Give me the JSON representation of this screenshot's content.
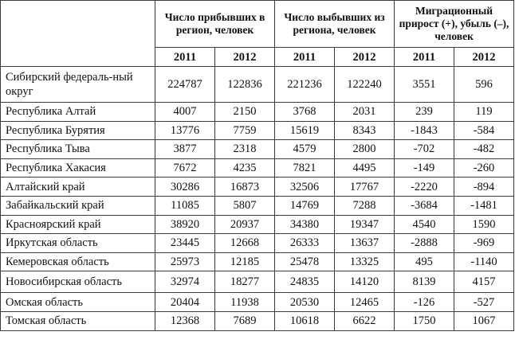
{
  "headers": {
    "arrived": "Число прибывших в регион, человек",
    "departed": "Число выбывших из региона, человек",
    "migration": "Миграционный прирост (+), убыль (–), человек",
    "years": [
      "2011",
      "2012",
      "2011",
      "2012",
      "2011",
      "2012"
    ]
  },
  "rows": [
    {
      "region": "Сибирский федераль-ный округ",
      "values": [
        "224787",
        "122836",
        "221236",
        "122240",
        "3551",
        "596"
      ]
    },
    {
      "region": "Республика Алтай",
      "values": [
        "4007",
        "2150",
        "3768",
        "2031",
        "239",
        "119"
      ]
    },
    {
      "region": "Республика Бурятия",
      "values": [
        "13776",
        "7759",
        "15619",
        "8343",
        "-1843",
        "-584"
      ]
    },
    {
      "region": "Республика Тыва",
      "values": [
        "3877",
        "2318",
        "4579",
        "2800",
        "-702",
        "-482"
      ]
    },
    {
      "region": "Республика Хакасия",
      "values": [
        "7672",
        "4235",
        "7821",
        "4495",
        "-149",
        "-260"
      ]
    },
    {
      "region": "Алтайский край",
      "values": [
        "30286",
        "16873",
        "32506",
        "17767",
        "-2220",
        "-894"
      ]
    },
    {
      "region": "Забайкальский край",
      "values": [
        "11085",
        "5807",
        "14769",
        "7288",
        "-3684",
        "-1481"
      ]
    },
    {
      "region": "Красноярский край",
      "values": [
        "38920",
        "20937",
        "34380",
        "19347",
        "4540",
        "1590"
      ]
    },
    {
      "region": "Иркутская область",
      "values": [
        "23445",
        "12668",
        "26333",
        "13637",
        "-2888",
        "-969"
      ]
    },
    {
      "region": "Кемеровская область",
      "values": [
        "25973",
        "12185",
        "25478",
        "13325",
        "495",
        "-1140"
      ]
    },
    {
      "region": "Новосибирская область",
      "values": [
        "32974",
        "18277",
        "24835",
        "14120",
        "8139",
        "4157"
      ]
    },
    {
      "region": "Омская область",
      "values": [
        "20404",
        "11938",
        "20530",
        "12465",
        "-126",
        "-527"
      ]
    },
    {
      "region": "Томская область",
      "values": [
        "12368",
        "7689",
        "10618",
        "6622",
        "1750",
        "1067"
      ]
    }
  ]
}
